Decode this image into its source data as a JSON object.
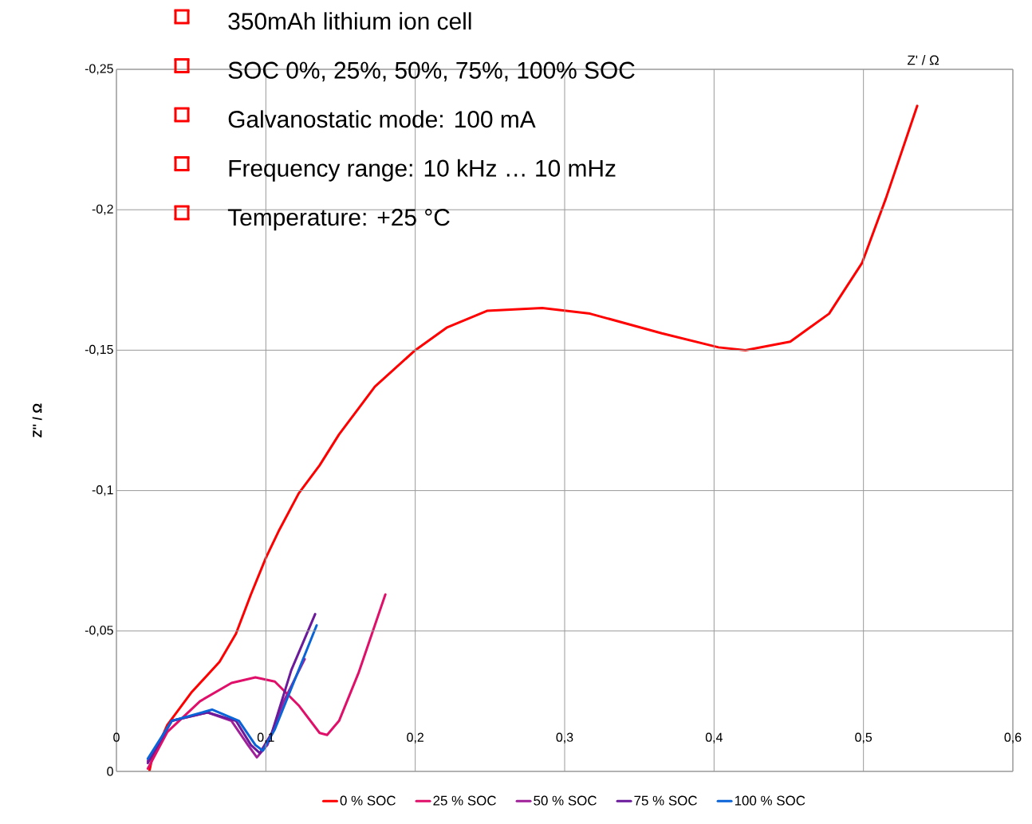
{
  "chart_data": {
    "type": "line",
    "xlabel": "Z' / Ω",
    "ylabel": "Z'' / Ω",
    "annotations": [
      "350mAh lithium ion cell",
      "SOC 0%, 25%, 50%, 75%, 100% SOC",
      "Galvanostatic mode: 100 mA",
      "Frequency range: 10 kHz … 10 mHz",
      "Temperature:  +25 °C"
    ],
    "xlim": [
      0,
      0.6
    ],
    "ylim": [
      0,
      -0.25
    ],
    "xticks": [
      {
        "value": 0,
        "label": "0"
      },
      {
        "value": 0.1,
        "label": "0,1"
      },
      {
        "value": 0.2,
        "label": "0,2"
      },
      {
        "value": 0.3,
        "label": "0,3"
      },
      {
        "value": 0.4,
        "label": "0,4"
      },
      {
        "value": 0.5,
        "label": "0,5"
      },
      {
        "value": 0.6,
        "label": "0,6"
      }
    ],
    "yticks": [
      {
        "value": 0,
        "label": "0"
      },
      {
        "value": -0.05,
        "label": "-0,05"
      },
      {
        "value": -0.1,
        "label": "-0,1"
      },
      {
        "value": -0.15,
        "label": "-0,15"
      },
      {
        "value": -0.2,
        "label": "-0,2"
      },
      {
        "value": -0.25,
        "label": "-0,25"
      }
    ],
    "grid": true,
    "legend": "bottom",
    "marker": "none",
    "line_style": "solid",
    "series": [
      {
        "name": "0 % SOC",
        "color": "#ff0000",
        "x": [
          0.022,
          0.0235,
          0.034,
          0.05,
          0.069,
          0.08,
          0.09,
          0.1,
          0.109,
          0.122,
          0.136,
          0.149,
          0.173,
          0.2,
          0.221,
          0.248,
          0.285,
          0.317,
          0.365,
          0.403,
          0.421,
          0.451,
          0.477,
          0.499,
          0.515,
          0.536
        ],
        "values": [
          0,
          -0.0037,
          -0.0165,
          -0.028,
          -0.039,
          -0.049,
          -0.063,
          -0.076,
          -0.086,
          -0.099,
          -0.109,
          -0.12,
          -0.137,
          -0.15,
          -0.158,
          -0.164,
          -0.165,
          -0.163,
          -0.156,
          -0.151,
          -0.15,
          -0.153,
          -0.163,
          -0.181,
          -0.204,
          -0.237
        ]
      },
      {
        "name": "25 % SOC",
        "color": "#e0106a",
        "x": [
          0.021,
          0.034,
          0.056,
          0.077,
          0.093,
          0.106,
          0.122,
          0.136,
          0.141,
          0.149,
          0.162,
          0.18
        ],
        "values": [
          -0.001,
          -0.014,
          -0.025,
          -0.0315,
          -0.0335,
          -0.032,
          -0.0235,
          -0.0137,
          -0.013,
          -0.018,
          -0.035,
          -0.063
        ]
      },
      {
        "name": "50 % SOC",
        "color": "#a0209a",
        "x": [
          0.021,
          0.037,
          0.061,
          0.077,
          0.088,
          0.094,
          0.101,
          0.112,
          0.126
        ],
        "values": [
          -0.0037,
          -0.018,
          -0.021,
          -0.018,
          -0.0094,
          -0.005,
          -0.0094,
          -0.025,
          -0.04
        ]
      },
      {
        "name": "75 % SOC",
        "color": "#6a1a9a",
        "x": [
          0.021,
          0.037,
          0.061,
          0.08,
          0.09,
          0.096,
          0.104,
          0.117,
          0.133
        ],
        "values": [
          -0.003,
          -0.018,
          -0.021,
          -0.018,
          -0.0094,
          -0.0065,
          -0.0137,
          -0.036,
          -0.056
        ]
      },
      {
        "name": "100 % SOC",
        "color": "#0a64d8",
        "x": [
          0.021,
          0.037,
          0.064,
          0.082,
          0.093,
          0.098,
          0.106,
          0.12,
          0.134
        ],
        "values": [
          -0.0045,
          -0.018,
          -0.022,
          -0.018,
          -0.0094,
          -0.0074,
          -0.015,
          -0.0335,
          -0.052
        ]
      }
    ]
  }
}
